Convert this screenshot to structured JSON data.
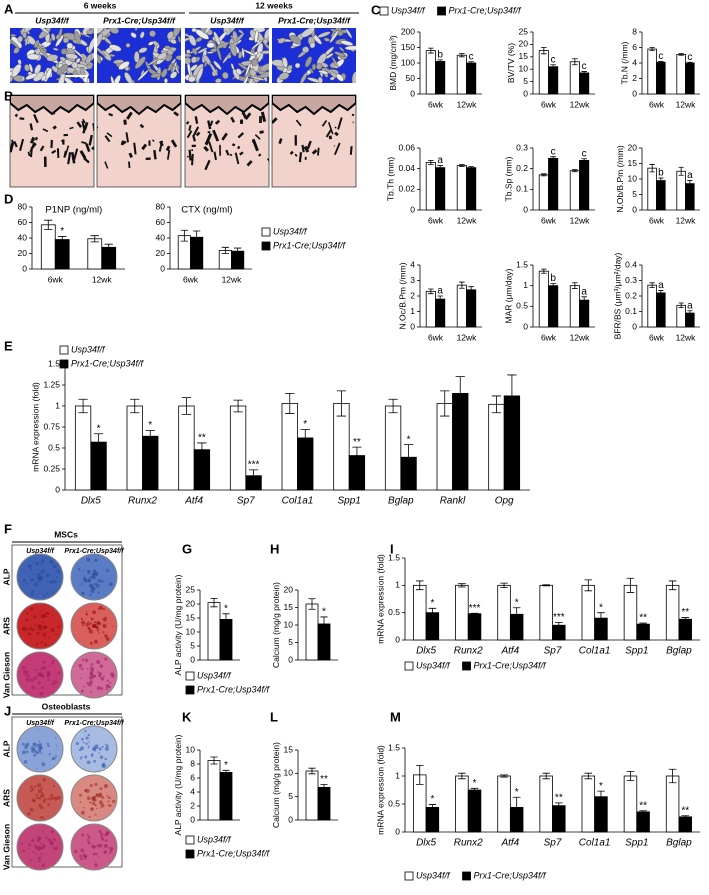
{
  "panel_letters": [
    "A",
    "B",
    "C",
    "D",
    "E",
    "F",
    "G",
    "H",
    "I",
    "J",
    "K",
    "L",
    "M"
  ],
  "figure_a": {
    "ages": [
      "6 weeks",
      "12 weeks"
    ],
    "genotypes": [
      "Usp34f/f",
      "Prx1-Cre;Usp34f/f",
      "Usp34f/f",
      "Prx1-Cre;Usp34f/f"
    ]
  },
  "figure_f": {
    "title": "MSCs",
    "columns": [
      "Usp34f/f",
      "Prx1-Cre;Usp34f/f"
    ],
    "rows": [
      "ALP",
      "ARS",
      "Van Gieson"
    ]
  },
  "figure_j": {
    "title": "Osteoblasts",
    "columns": [
      "Usp34f/f",
      "Prx1-Cre;Usp34f/f"
    ],
    "rows": [
      "ALP",
      "ARS",
      "Van Gieson"
    ]
  },
  "chart_data": [
    {
      "type": "bar",
      "ylabel": "BMD (mg/cm³)",
      "categories": [
        "6wk",
        "12wk"
      ],
      "legend": "top",
      "ylim": [
        0,
        200
      ],
      "yticks": [
        0,
        50,
        100,
        150,
        200
      ],
      "series": [
        {
          "name": "Usp34f/f",
          "color": "#ffffff",
          "values": [
            140,
            125
          ],
          "errors": [
            8,
            5
          ],
          "annotations": [
            null,
            null
          ]
        },
        {
          "name": "Prx1-Cre;Usp34f/f",
          "color": "#000000",
          "values": [
            105,
            100
          ],
          "errors": [
            5,
            4
          ],
          "annotations": [
            "b",
            "c"
          ]
        }
      ]
    },
    {
      "type": "bar",
      "ylabel": "BV/TV (%)",
      "categories": [
        "6wk",
        "12wk"
      ],
      "ylim": [
        0,
        25
      ],
      "yticks": [
        0,
        5,
        10,
        15,
        20,
        25
      ],
      "series": [
        {
          "name": "Usp34f/f",
          "color": "#ffffff",
          "values": [
            17.5,
            13
          ],
          "errors": [
            1.3,
            1.2
          ],
          "annotations": [
            null,
            null
          ]
        },
        {
          "name": "Prx1-Cre;Usp34f/f",
          "color": "#000000",
          "values": [
            11,
            8.5
          ],
          "errors": [
            0.8,
            0.6
          ],
          "annotations": [
            "c",
            "c"
          ]
        }
      ]
    },
    {
      "type": "bar",
      "ylabel": "Tb.N (/mm)",
      "categories": [
        "6wk",
        "12wk"
      ],
      "ylim": [
        0,
        8
      ],
      "yticks": [
        0,
        2,
        4,
        6,
        8
      ],
      "series": [
        {
          "name": "Usp34f/f",
          "color": "#ffffff",
          "values": [
            5.8,
            5.1
          ],
          "errors": [
            0.2,
            0.1
          ],
          "annotations": [
            null,
            null
          ]
        },
        {
          "name": "Prx1-Cre;Usp34f/f",
          "color": "#000000",
          "values": [
            4.1,
            4
          ],
          "errors": [
            0.1,
            0.1
          ],
          "annotations": [
            "c",
            "c"
          ]
        }
      ]
    },
    {
      "type": "bar",
      "ylabel": "Tb.Th (mm)",
      "categories": [
        "6wk",
        "12wk"
      ],
      "ylim": [
        0,
        0.06
      ],
      "yticks": [
        0,
        0.02,
        0.04,
        0.06
      ],
      "series": [
        {
          "name": "Usp34f/f",
          "color": "#ffffff",
          "values": [
            0.046,
            0.043
          ],
          "errors": [
            0.002,
            0.001
          ],
          "annotations": [
            null,
            null
          ]
        },
        {
          "name": "Prx1-Cre;Usp34f/f",
          "color": "#000000",
          "values": [
            0.041,
            0.041
          ],
          "errors": [
            0.002,
            0.001
          ],
          "annotations": [
            "a",
            null
          ]
        }
      ]
    },
    {
      "type": "bar",
      "ylabel": "Tb.Sp (mm)",
      "categories": [
        "6wk",
        "12wk"
      ],
      "ylim": [
        0,
        0.3
      ],
      "yticks": [
        0,
        0.1,
        0.2,
        0.3
      ],
      "series": [
        {
          "name": "Usp34f/f",
          "color": "#ffffff",
          "values": [
            0.17,
            0.19
          ],
          "errors": [
            0.005,
            0.005
          ],
          "annotations": [
            null,
            null
          ]
        },
        {
          "name": "Prx1-Cre;Usp34f/f",
          "color": "#000000",
          "values": [
            0.25,
            0.24
          ],
          "errors": [
            0.008,
            0.008
          ],
          "annotations": [
            "c",
            "c"
          ]
        }
      ]
    },
    {
      "type": "bar",
      "ylabel": "N.Ob/B.Pm (/mm)",
      "categories": [
        "6wk",
        "12wk"
      ],
      "ylim": [
        0,
        20
      ],
      "yticks": [
        0,
        5,
        10,
        15,
        20
      ],
      "series": [
        {
          "name": "Usp34f/f",
          "color": "#ffffff",
          "values": [
            13.5,
            12.5
          ],
          "errors": [
            1.2,
            1.3
          ],
          "annotations": [
            null,
            null
          ]
        },
        {
          "name": "Prx1-Cre;Usp34f/f",
          "color": "#000000",
          "values": [
            9.5,
            8.5
          ],
          "errors": [
            0.8,
            1
          ],
          "annotations": [
            "b",
            "a"
          ]
        }
      ]
    },
    {
      "type": "bar",
      "ylabel": "N.Oc/B.Pm (/mm)",
      "categories": [
        "6wk",
        "12wk"
      ],
      "ylim": [
        0,
        4
      ],
      "yticks": [
        0,
        1,
        2,
        3,
        4
      ],
      "series": [
        {
          "name": "Usp34f/f",
          "color": "#ffffff",
          "values": [
            2.3,
            2.7
          ],
          "errors": [
            0.15,
            0.2
          ],
          "annotations": [
            null,
            null
          ]
        },
        {
          "name": "Prx1-Cre;Usp34f/f",
          "color": "#000000",
          "values": [
            1.8,
            2.4
          ],
          "errors": [
            0.2,
            0.2
          ],
          "annotations": [
            "a",
            null
          ]
        }
      ]
    },
    {
      "type": "bar",
      "ylabel": "MAR (μm/day)",
      "categories": [
        "6wk",
        "12wk"
      ],
      "ylim": [
        0,
        1.5
      ],
      "yticks": [
        0,
        0.5,
        1,
        1.5
      ],
      "series": [
        {
          "name": "Usp34f/f",
          "color": "#ffffff",
          "values": [
            1.35,
            1
          ],
          "errors": [
            0.05,
            0.07
          ],
          "annotations": [
            null,
            null
          ]
        },
        {
          "name": "Prx1-Cre;Usp34f/f",
          "color": "#000000",
          "values": [
            1,
            0.65
          ],
          "errors": [
            0.05,
            0.08
          ],
          "annotations": [
            "b",
            "a"
          ]
        }
      ]
    },
    {
      "type": "bar",
      "ylabel": "BFR/BS (μm³/μm²/day)",
      "categories": [
        "6wk",
        "12wk"
      ],
      "ylim": [
        0,
        0.4
      ],
      "yticks": [
        0,
        0.1,
        0.2,
        0.3,
        0.4
      ],
      "series": [
        {
          "name": "Usp34f/f",
          "color": "#ffffff",
          "values": [
            0.27,
            0.14
          ],
          "errors": [
            0.015,
            0.015
          ],
          "annotations": [
            null,
            null
          ]
        },
        {
          "name": "Prx1-Cre;Usp34f/f",
          "color": "#000000",
          "values": [
            0.22,
            0.09
          ],
          "errors": [
            0.015,
            0.015
          ],
          "annotations": [
            "a",
            "a"
          ]
        }
      ]
    },
    {
      "type": "bar",
      "title": "P1NP (ng/ml)",
      "categories": [
        "6wk",
        "12wk"
      ],
      "legend": "right",
      "ylim": [
        0,
        80
      ],
      "yticks": [
        0,
        20,
        40,
        60,
        80
      ],
      "series": [
        {
          "name": "Usp34f/f",
          "color": "#ffffff",
          "values": [
            57,
            39
          ],
          "errors": [
            6,
            4
          ],
          "annotations": [
            null,
            null
          ]
        },
        {
          "name": "Prx1-Cre;Usp34f/f",
          "color": "#000000",
          "values": [
            38,
            28
          ],
          "errors": [
            4,
            4
          ],
          "annotations": [
            "*",
            null
          ]
        }
      ]
    },
    {
      "type": "bar",
      "title": "CTX (ng/ml)",
      "categories": [
        "6wk",
        "12wk"
      ],
      "ylim": [
        0,
        80
      ],
      "yticks": [
        0,
        20,
        40,
        60,
        80
      ],
      "series": [
        {
          "name": "Usp34f/f",
          "color": "#ffffff",
          "values": [
            43,
            24
          ],
          "errors": [
            7,
            4
          ],
          "annotations": [
            null,
            null
          ]
        },
        {
          "name": "Prx1-Cre;Usp34f/f",
          "color": "#000000",
          "values": [
            41,
            23
          ],
          "errors": [
            8,
            4
          ],
          "annotations": [
            null,
            null
          ]
        }
      ]
    },
    {
      "type": "bar",
      "ylabel": "mRNA expression (fold)",
      "categories": [
        "Dlx5",
        "Runx2",
        "Atf4",
        "Sp7",
        "Col1a1",
        "Spp1",
        "Bglap",
        "Rankl",
        "Opg"
      ],
      "legend": "upper left",
      "ylim": [
        0,
        1.5
      ],
      "yticks": [
        0,
        0.25,
        0.5,
        0.75,
        1,
        1.25,
        1.5
      ],
      "series": [
        {
          "name": "Usp34f/f",
          "color": "#ffffff",
          "values": [
            1,
            1,
            1,
            1,
            1.03,
            1.03,
            1,
            1.03,
            1.02
          ],
          "errors": [
            0.08,
            0.08,
            0.1,
            0.07,
            0.12,
            0.15,
            0.08,
            0.15,
            0.1
          ],
          "annotations": [
            null,
            null,
            null,
            null,
            null,
            null,
            null,
            null,
            null
          ]
        },
        {
          "name": "Prx1-Cre;Usp34f/f",
          "color": "#000000",
          "values": [
            0.57,
            0.64,
            0.48,
            0.17,
            0.62,
            0.41,
            0.39,
            1.15,
            1.12
          ],
          "errors": [
            0.1,
            0.07,
            0.08,
            0.07,
            0.1,
            0.1,
            0.15,
            0.2,
            0.25
          ],
          "annotations": [
            "*",
            "*",
            "**",
            "***",
            "*",
            "**",
            "*",
            null,
            null
          ]
        }
      ]
    },
    {
      "type": "bar",
      "ylabel": "ALP activity (U/mg protein)",
      "categories": [
        null
      ],
      "legend": "lower left",
      "ylim": [
        0,
        25
      ],
      "yticks": [
        0,
        5,
        10,
        15,
        20,
        25
      ],
      "series": [
        {
          "name": "Usp34f/f",
          "color": "#ffffff",
          "values": [
            20.5
          ],
          "errors": [
            1.5
          ],
          "annotations": [
            null
          ]
        },
        {
          "name": "Prx1-Cre;Usp34f/f",
          "color": "#000000",
          "values": [
            14.5
          ],
          "errors": [
            2
          ],
          "annotations": [
            "*"
          ]
        }
      ]
    },
    {
      "type": "bar",
      "ylabel": "Calcium (mg/g protein)",
      "categories": [
        null
      ],
      "ylim": [
        0,
        20
      ],
      "yticks": [
        0,
        5,
        10,
        15,
        20
      ],
      "series": [
        {
          "name": "Usp34f/f",
          "color": "#ffffff",
          "values": [
            16
          ],
          "errors": [
            1.5
          ],
          "annotations": [
            null
          ]
        },
        {
          "name": "Prx1-Cre;Usp34f/f",
          "color": "#000000",
          "values": [
            10.3
          ],
          "errors": [
            2
          ],
          "annotations": [
            "*"
          ]
        }
      ]
    },
    {
      "type": "bar",
      "ylabel": "mRNA expression (fold)",
      "categories": [
        "Dlx5",
        "Runx2",
        "Atf4",
        "Sp7",
        "Col1a1",
        "Spp1",
        "Bglap"
      ],
      "legend": "bottom",
      "ylim": [
        0,
        1.5
      ],
      "yticks": [
        0,
        0.5,
        1,
        1.5
      ],
      "series": [
        {
          "name": "Usp34f/f",
          "color": "#ffffff",
          "values": [
            1,
            1,
            1,
            1,
            1,
            1,
            1
          ],
          "errors": [
            0.08,
            0.03,
            0.04,
            0.01,
            0.1,
            0.13,
            0.08
          ],
          "annotations": [
            null,
            null,
            null,
            null,
            null,
            null,
            null
          ]
        },
        {
          "name": "Prx1-Cre;Usp34f/f",
          "color": "#000000",
          "values": [
            0.5,
            0.48,
            0.47,
            0.27,
            0.4,
            0.29,
            0.38
          ],
          "errors": [
            0.08,
            0.01,
            0.12,
            0.05,
            0.1,
            0.02,
            0.03
          ],
          "annotations": [
            "*",
            "***",
            "*",
            "***",
            "*",
            "**",
            "**"
          ]
        }
      ]
    },
    {
      "type": "bar",
      "ylabel": "ALP activity (U/mg protein)",
      "categories": [
        null
      ],
      "legend": "lower left",
      "ylim": [
        0,
        10
      ],
      "yticks": [
        0,
        2,
        4,
        6,
        8,
        10
      ],
      "series": [
        {
          "name": "Usp34f/f",
          "color": "#ffffff",
          "values": [
            8.5
          ],
          "errors": [
            0.5
          ],
          "annotations": [
            null
          ]
        },
        {
          "name": "Prx1-Cre;Usp34f/f",
          "color": "#000000",
          "values": [
            6.8
          ],
          "errors": [
            0.3
          ],
          "annotations": [
            "*"
          ]
        }
      ]
    },
    {
      "type": "bar",
      "ylabel": "Calcium (mg/g protein)",
      "categories": [
        null
      ],
      "ylim": [
        0,
        15
      ],
      "yticks": [
        0,
        5,
        10,
        15
      ],
      "series": [
        {
          "name": "Usp34f/f",
          "color": "#ffffff",
          "values": [
            10.5
          ],
          "errors": [
            0.6
          ],
          "annotations": [
            null
          ]
        },
        {
          "name": "Prx1-Cre;Usp34f/f",
          "color": "#000000",
          "values": [
            7
          ],
          "errors": [
            0.6
          ],
          "annotations": [
            "**"
          ]
        }
      ]
    },
    {
      "type": "bar",
      "ylabel": "mRNA expression (fold)",
      "categories": [
        "Dlx5",
        "Runx2",
        "Atf4",
        "Sp7",
        "Col1a1",
        "Spp1",
        "Bglap"
      ],
      "legend": "bottom",
      "ylim": [
        0,
        1.5
      ],
      "yticks": [
        0,
        0.5,
        1,
        1.5
      ],
      "series": [
        {
          "name": "Usp34f/f",
          "color": "#ffffff",
          "values": [
            1.02,
            1,
            1,
            1,
            1,
            1,
            1
          ],
          "errors": [
            0.17,
            0.05,
            0.02,
            0.05,
            0.05,
            0.08,
            0.12
          ],
          "annotations": [
            null,
            null,
            null,
            null,
            null,
            null,
            null
          ]
        },
        {
          "name": "Prx1-Cre;Usp34f/f",
          "color": "#000000",
          "values": [
            0.44,
            0.75,
            0.44,
            0.47,
            0.63,
            0.36,
            0.27
          ],
          "errors": [
            0.05,
            0.03,
            0.18,
            0.05,
            0.1,
            0.02,
            0.02
          ],
          "annotations": [
            "*",
            "*",
            "*",
            "**",
            "*",
            "**",
            "**"
          ]
        }
      ]
    }
  ]
}
